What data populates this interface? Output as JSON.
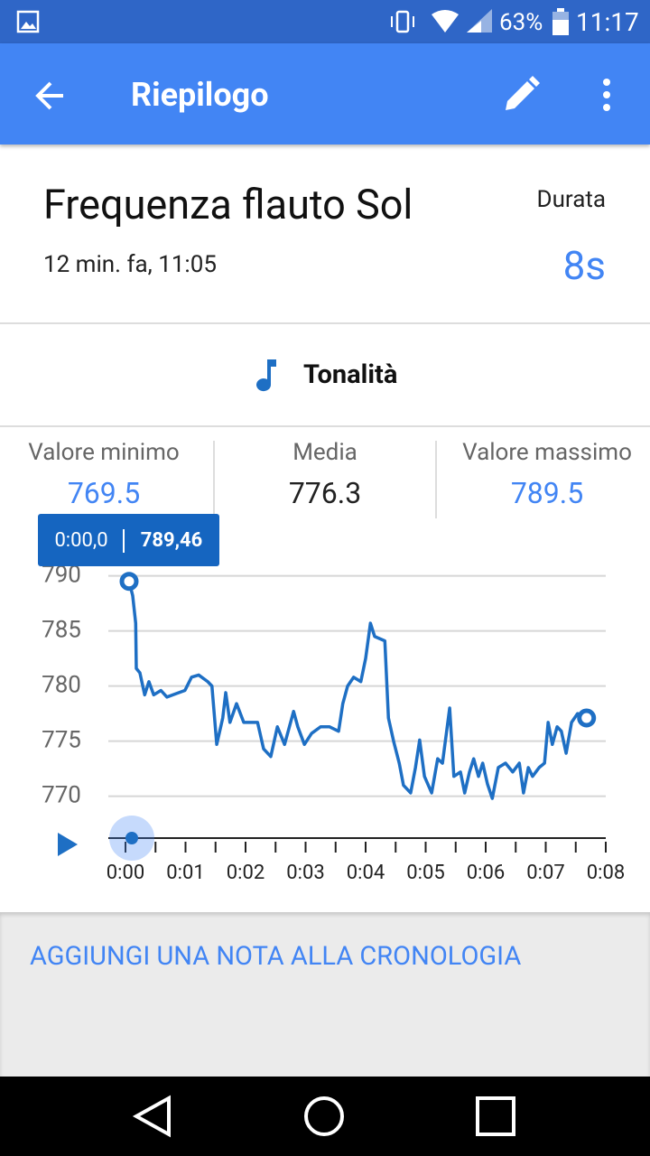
{
  "status_bar": {
    "battery": "63%",
    "time": "11:17"
  },
  "app_bar": {
    "title": "Riepilogo"
  },
  "header": {
    "title": "Frequenza flauto Sol",
    "timestamp": "12 min. fa, 11:05",
    "duration_label": "Durata",
    "duration": "8s"
  },
  "section": {
    "title": "Tonalità"
  },
  "stats": [
    {
      "label": "Valore minimo",
      "value": "769.5"
    },
    {
      "label": "Media",
      "value": "776.3"
    },
    {
      "label": "Valore massimo",
      "value": "789.5"
    }
  ],
  "tooltip": {
    "time": "0:00,0",
    "value": "789,46"
  },
  "action": {
    "label": "AGGIUNGI UNA NOTA ALLA CRONOLOGIA"
  },
  "chart_data": {
    "type": "line",
    "color": "#1e6fc4",
    "x": [
      0.06,
      0.12,
      0.17,
      0.18,
      0.24,
      0.32,
      0.39,
      0.47,
      0.59,
      0.69,
      0.84,
      0.99,
      1.1,
      1.22,
      1.37,
      1.44,
      1.52,
      1.62,
      1.67,
      1.74,
      1.85,
      1.97,
      2.2,
      2.3,
      2.42,
      2.53,
      2.65,
      2.8,
      2.87,
      2.98,
      3.1,
      3.25,
      3.4,
      3.55,
      3.62,
      3.7,
      3.8,
      3.92,
      4.0,
      4.08,
      4.15,
      4.32,
      4.38,
      4.47,
      4.56,
      4.63,
      4.75,
      4.83,
      4.9,
      4.98,
      5.1,
      5.2,
      5.28,
      5.4,
      5.47,
      5.58,
      5.65,
      5.73,
      5.8,
      5.88,
      5.95,
      6.03,
      6.11,
      6.21,
      6.33,
      6.45,
      6.56,
      6.63,
      6.71,
      6.78,
      6.89,
      6.98,
      7.04,
      7.11,
      7.19,
      7.26,
      7.34,
      7.43,
      7.53,
      7.68
    ],
    "values": [
      789.5,
      788.2,
      785.7,
      781.6,
      781.2,
      779.2,
      780.4,
      779.2,
      779.6,
      779.0,
      779.3,
      779.6,
      780.8,
      781.0,
      780.4,
      780.0,
      774.7,
      777.1,
      779.4,
      776.7,
      778.4,
      776.7,
      776.7,
      774.3,
      773.6,
      776.3,
      774.7,
      777.7,
      776.3,
      774.7,
      775.7,
      776.3,
      776.3,
      775.9,
      778.4,
      780.0,
      780.8,
      780.4,
      782.5,
      785.7,
      784.5,
      784.1,
      777.1,
      774.9,
      773.0,
      771.0,
      770.3,
      772.6,
      775.1,
      771.8,
      770.3,
      773.4,
      773.0,
      778.0,
      771.8,
      772.2,
      770.3,
      772.2,
      773.4,
      771.8,
      773.0,
      771.1,
      769.8,
      772.6,
      773.0,
      772.2,
      773.0,
      770.3,
      772.6,
      771.8,
      772.6,
      773.0,
      776.7,
      774.7,
      776.3,
      775.9,
      773.9,
      776.7,
      777.5,
      777.1
    ],
    "xlim": [
      0,
      8
    ],
    "xticks": [
      {
        "value": 0,
        "label": "0:00"
      },
      {
        "value": 1,
        "label": "0:01"
      },
      {
        "value": 2,
        "label": "0:02"
      },
      {
        "value": 3,
        "label": "0:03"
      },
      {
        "value": 4,
        "label": "0:04"
      },
      {
        "value": 5,
        "label": "0:05"
      },
      {
        "value": 6,
        "label": "0:06"
      },
      {
        "value": 7,
        "label": "0:07"
      },
      {
        "value": 8,
        "label": "0:08"
      }
    ],
    "ylim": [
      766.2,
      791
    ],
    "yticks": [
      770,
      775,
      780,
      785,
      790
    ],
    "grid": true
  }
}
